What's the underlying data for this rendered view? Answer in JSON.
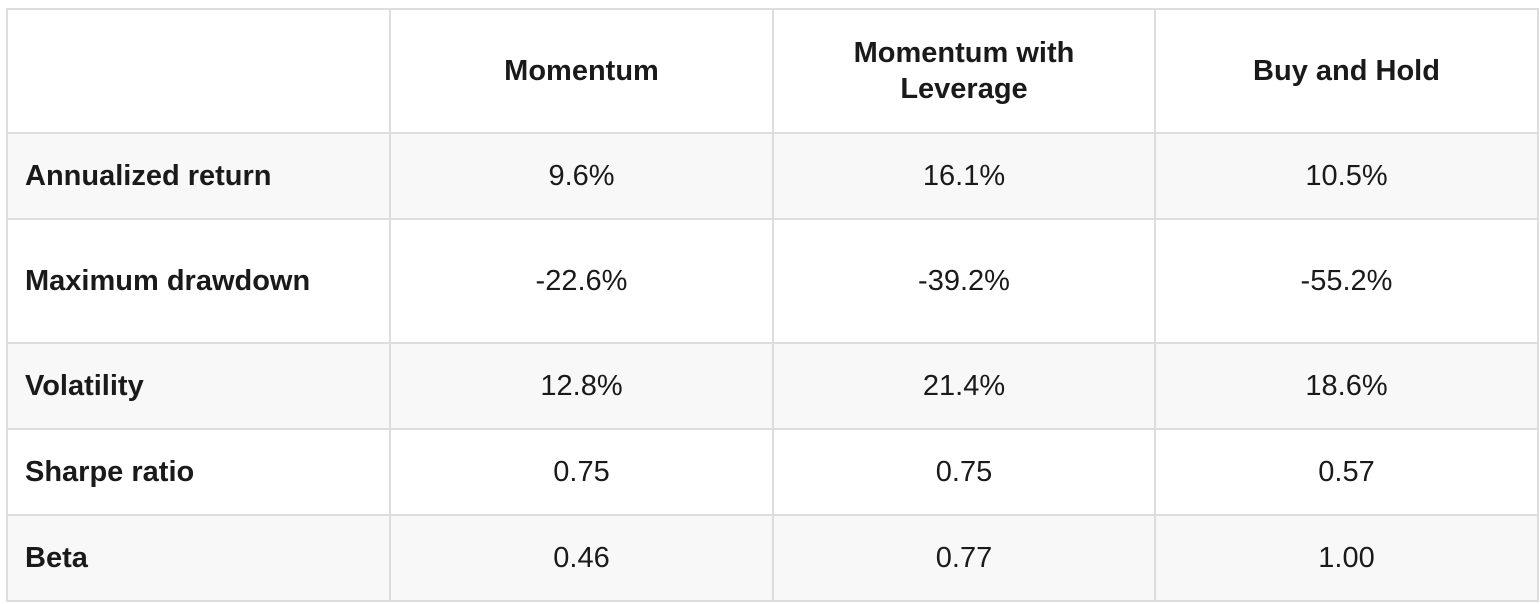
{
  "table": {
    "columns": [
      "",
      "Momentum",
      "Momentum with Leverage",
      "Buy and Hold"
    ],
    "rows": [
      {
        "label": "Annualized return",
        "values": [
          "9.6%",
          "16.1%",
          "10.5%"
        ]
      },
      {
        "label": "Maximum drawdown",
        "values": [
          "-22.6%",
          "-39.2%",
          "-55.2%"
        ]
      },
      {
        "label": "Volatility",
        "values": [
          "12.8%",
          "21.4%",
          "18.6%"
        ]
      },
      {
        "label": "Sharpe ratio",
        "values": [
          "0.75",
          "0.75",
          "0.57"
        ]
      },
      {
        "label": "Beta",
        "values": [
          "0.46",
          "0.77",
          "1.00"
        ]
      }
    ]
  },
  "colors": {
    "border": "#dddddd",
    "shaded_row": "#f8f8f8",
    "text": "#1a1a1a"
  }
}
